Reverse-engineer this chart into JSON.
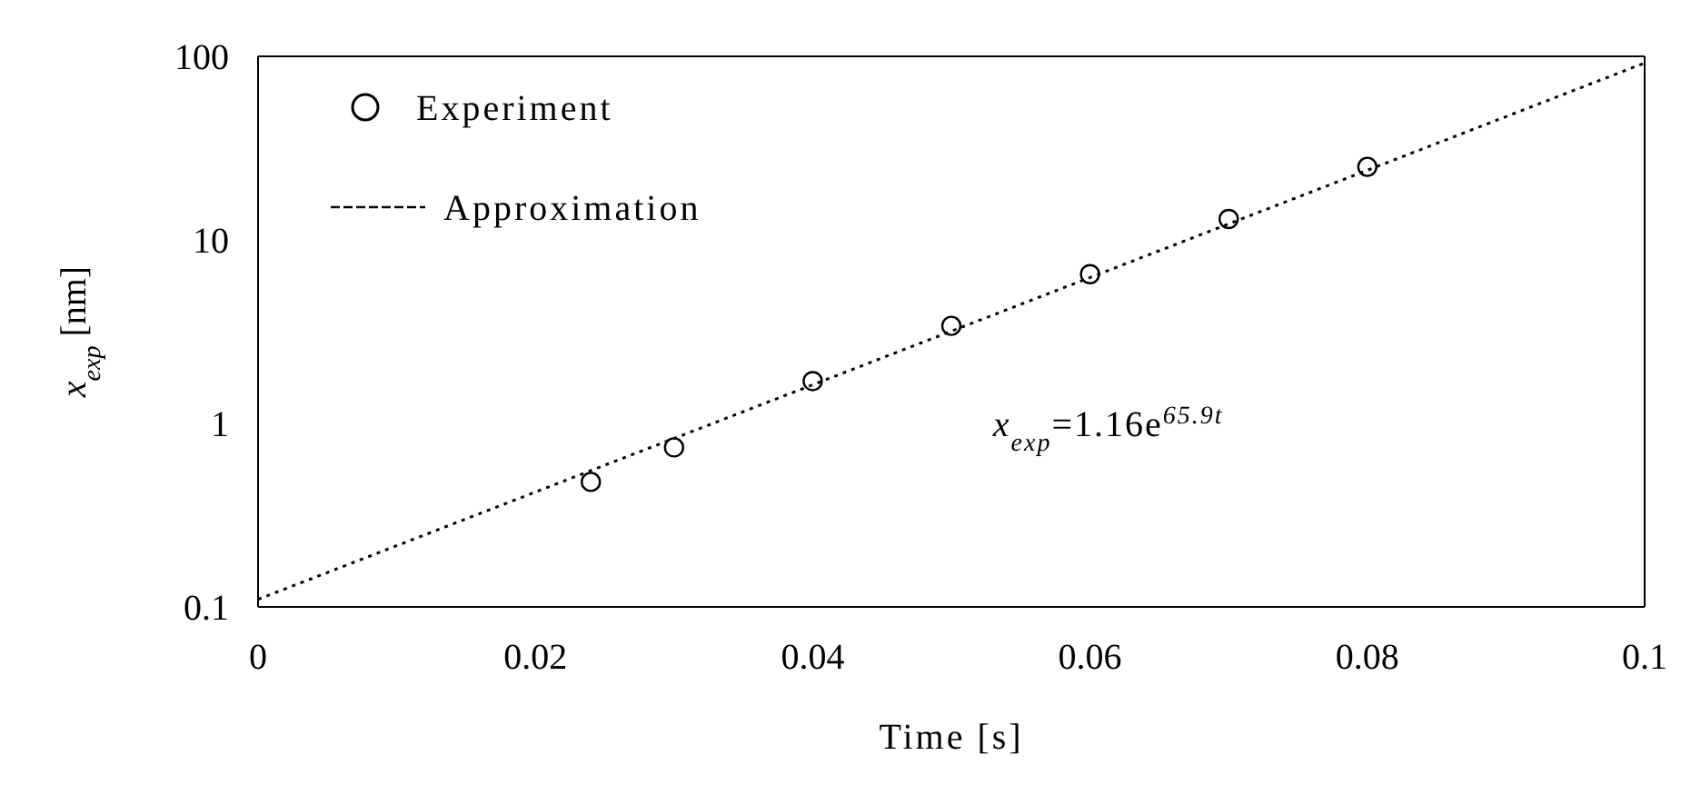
{
  "chart_data": {
    "type": "scatter",
    "xlabel": "Time [s]",
    "ylabel": "x$_{exp}$ [nm]",
    "xlim": [
      0,
      0.1
    ],
    "xticks": [
      0,
      0.02,
      0.04,
      0.06,
      0.08,
      0.1
    ],
    "ylim": [
      0.1,
      100
    ],
    "yticks": [
      0.1,
      1,
      10,
      100
    ],
    "log": "y",
    "grid": false,
    "legend": "top left",
    "series": [
      {
        "name": "Experiment",
        "color": "#000000",
        "marker": "circle",
        "x": [
          0.024,
          0.03,
          0.04,
          0.05,
          0.06,
          0.07,
          0.08
        ],
        "values": [
          0.48,
          0.74,
          1.7,
          3.4,
          6.5,
          13,
          25
        ]
      },
      {
        "name": "Approximation",
        "type": "line",
        "color": "#000000",
        "marker": "none",
        "line_style": "dotted",
        "x": [
          0,
          0.1
        ],
        "values": [
          0.11,
          92
        ]
      }
    ],
    "annotations": [
      "x$_{exp}$=1.16e$^{65.9t}$"
    ]
  }
}
